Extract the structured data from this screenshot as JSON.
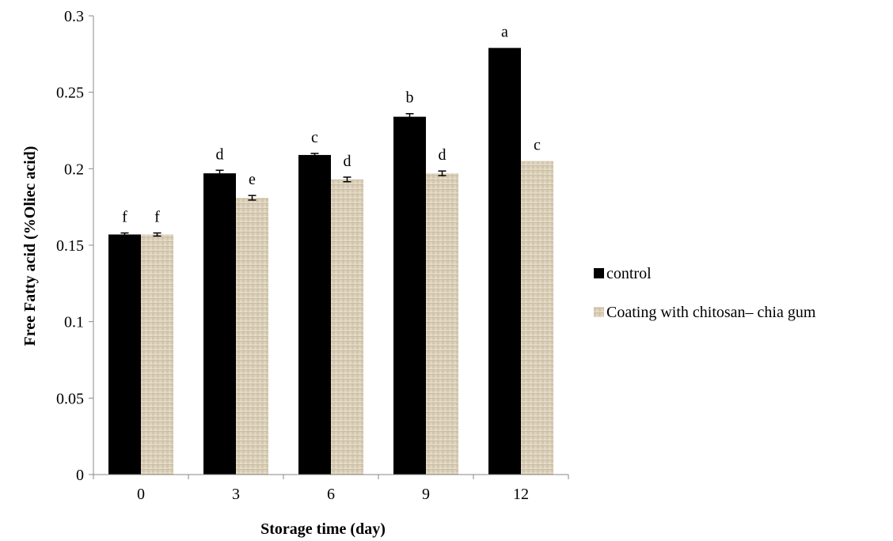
{
  "colors": {
    "control": "#000000",
    "coating": "#ddd3be",
    "coating_texture": "#c9bda3",
    "axis": "#888888",
    "error_bar": "#000000"
  },
  "chart_data": {
    "type": "bar",
    "xlabel": "Storage time (day)",
    "ylabel": "Free Fatty acid (%Oliec acid)",
    "categories": [
      "0",
      "3",
      "6",
      "9",
      "12"
    ],
    "ylim": [
      0,
      0.3
    ],
    "yticks": [
      "0",
      "0.05",
      "0.1",
      "0.15",
      "0.2",
      "0.25",
      "0.3"
    ],
    "grid": false,
    "legend_position": "right",
    "series": [
      {
        "name": "control",
        "values": [
          0.157,
          0.197,
          0.209,
          0.234,
          0.279
        ],
        "errors": [
          0.001,
          0.002,
          0.001,
          0.002,
          0.0
        ],
        "letters": [
          "f",
          "d",
          "c",
          "b",
          "a"
        ]
      },
      {
        "name": "Coating with chitosan– chia gum",
        "values": [
          0.157,
          0.181,
          0.193,
          0.197,
          0.205
        ],
        "errors": [
          0.001,
          0.0015,
          0.0015,
          0.0015,
          0.0
        ],
        "letters": [
          "f",
          "e",
          "d",
          "d",
          "c"
        ]
      }
    ]
  }
}
